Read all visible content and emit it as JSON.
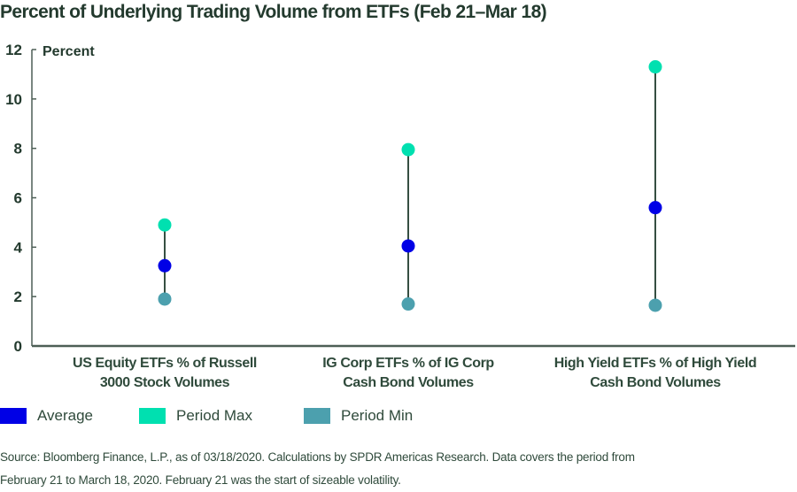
{
  "chart_data": {
    "type": "scatter",
    "subtype": "dumbbell",
    "title": "Percent of Underlying Trading Volume from ETFs (Feb 21–Mar 18)",
    "ylabel": "Percent",
    "xlabel": "",
    "ylim": [
      0,
      12
    ],
    "yticks": [
      "0",
      "2",
      "4",
      "6",
      "8",
      "10",
      "12"
    ],
    "grid": false,
    "categories": [
      [
        "US Equity ETFs % of Russell",
        "3000 Stock Volumes"
      ],
      [
        "IG Corp ETFs % of IG Corp",
        "Cash Bond Volumes"
      ],
      [
        "High Yield ETFs % of High Yield",
        "Cash Bond Volumes"
      ]
    ],
    "series": [
      {
        "name": "Average",
        "color": "#0000e6",
        "values": [
          3.25,
          4.05,
          5.6
        ]
      },
      {
        "name": "Period Max",
        "color": "#00e0b0",
        "values": [
          4.9,
          7.95,
          11.3
        ]
      },
      {
        "name": "Period Min",
        "color": "#4ca0ae",
        "values": [
          1.9,
          1.7,
          1.65
        ]
      }
    ],
    "legend_position": "bottom-left",
    "source": [
      "Source: Bloomberg Finance, L.P., as of 03/18/2020. Calculations by SPDR Americas Research. Data covers the period from",
      "February 21 to March 18, 2020.  February 21 was the start of sizeable volatility."
    ]
  }
}
